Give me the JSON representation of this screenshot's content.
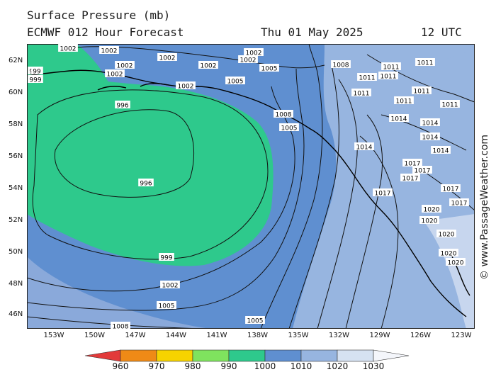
{
  "header": {
    "title": "Surface Pressure (mb)",
    "model": "ECMWF 012 Hour Forecast",
    "date": "Thu 01 May 2025",
    "time": "12 UTC"
  },
  "credit": "© www.PassageWeather.com",
  "lat_labels": [
    "62N",
    "60N",
    "58N",
    "56N",
    "54N",
    "52N",
    "50N",
    "48N",
    "46N"
  ],
  "lon_labels": [
    "153W",
    "150W",
    "147W",
    "144W",
    "141W",
    "138W",
    "135W",
    "132W",
    "129W",
    "126W",
    "123W"
  ],
  "colorbar": {
    "ticks": [
      "960",
      "970",
      "980",
      "990",
      "1000",
      "1010",
      "1020",
      "1030"
    ],
    "colors": [
      "#e23a3a",
      "#ef8a16",
      "#f6d300",
      "#7fe35e",
      "#2ec98c",
      "#5f8fd0",
      "#97b5e0",
      "#d6e2f2",
      "#f4f6fb"
    ]
  },
  "isobar_labels": [
    {
      "text": "1002"
    },
    {
      "text": "1002"
    },
    {
      "text": "1002"
    },
    {
      "text": "1002"
    },
    {
      "text": "1002"
    },
    {
      "text": "1002"
    },
    {
      "text": "1002"
    },
    {
      "text": "1002"
    },
    {
      "text": "1002"
    },
    {
      "text": "1005"
    },
    {
      "text": "1005"
    },
    {
      "text": "1008"
    },
    {
      "text": "1008"
    },
    {
      "text": "1005"
    },
    {
      "text": "996"
    },
    {
      "text": "996"
    },
    {
      "text": "999"
    },
    {
      "text": "999"
    },
    {
      "text": "1002"
    },
    {
      "text": "1005"
    },
    {
      "text": "1008"
    },
    {
      "text": "1005"
    },
    {
      "text": "1011"
    },
    {
      "text": "1011"
    },
    {
      "text": "1011"
    },
    {
      "text": "1014"
    },
    {
      "text": "1014"
    },
    {
      "text": "1014"
    },
    {
      "text": "1017"
    },
    {
      "text": "1017"
    },
    {
      "text": "1017"
    },
    {
      "text": "1020"
    },
    {
      "text": "1020"
    },
    {
      "text": "1020"
    },
    {
      "text": "1020"
    },
    {
      "text": "1014"
    },
    {
      "text": "1011"
    },
    {
      "text": "1011"
    },
    {
      "text": "1017"
    },
    {
      "text": "1017"
    },
    {
      "text": "999"
    },
    {
      "text": "99"
    },
    {
      "text": "1011"
    },
    {
      "text": "1014"
    },
    {
      "text": "1017"
    },
    {
      "text": "1020"
    },
    {
      "text": "1011"
    },
    {
      "text": "1011"
    }
  ]
}
